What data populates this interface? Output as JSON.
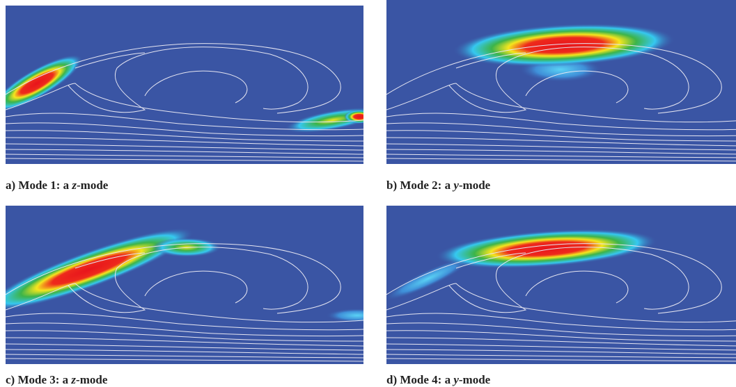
{
  "panels": [
    {
      "prefix": "a) Mode 1: a ",
      "mode": "z",
      "suffix": "-mode"
    },
    {
      "prefix": "b) Mode 2: a ",
      "mode": "y",
      "suffix": "-mode"
    },
    {
      "prefix": "c) Mode 3: a ",
      "mode": "z",
      "suffix": "-mode"
    },
    {
      "prefix": "d) Mode 4: a ",
      "mode": "y",
      "suffix": "-mode"
    }
  ]
}
